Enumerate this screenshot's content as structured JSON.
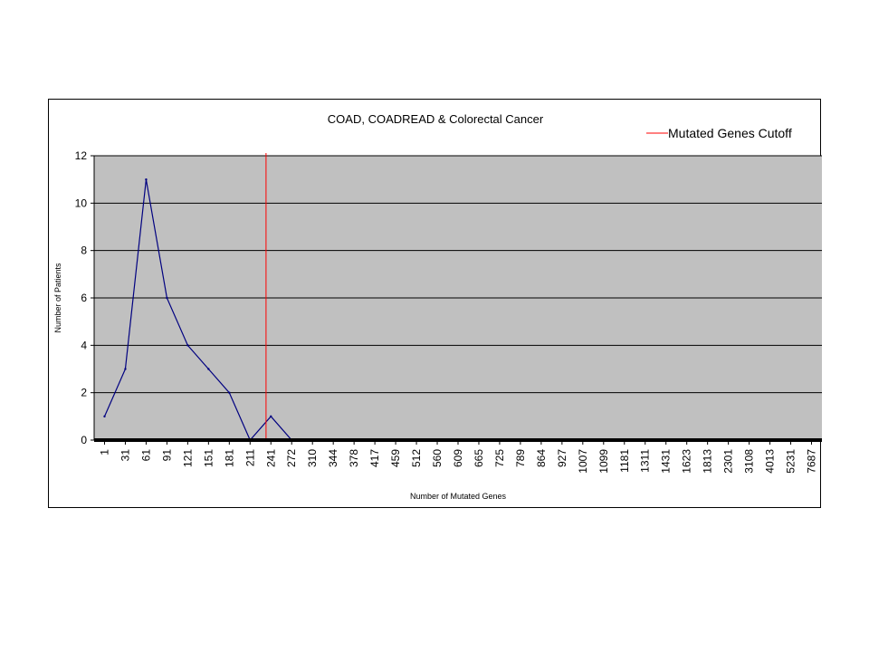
{
  "chart_data": {
    "type": "line",
    "title": "COAD, COADREAD & Colorectal Cancer",
    "xlabel": "Number of Mutated Genes",
    "ylabel": "Number of Patients",
    "ylim": [
      0,
      12
    ],
    "yticks": [
      0,
      2,
      4,
      6,
      8,
      10,
      12
    ],
    "grid": true,
    "legend_position": "top-right",
    "x_tick_labels": [
      "1",
      "31",
      "61",
      "91",
      "121",
      "151",
      "181",
      "211",
      "241",
      "272",
      "310",
      "344",
      "378",
      "417",
      "459",
      "512",
      "560",
      "609",
      "665",
      "725",
      "789",
      "864",
      "927",
      "1007",
      "1099",
      "1181",
      "1311",
      "1431",
      "1623",
      "1813",
      "2301",
      "3108",
      "4013",
      "5231",
      "7687"
    ],
    "series": [
      {
        "name": "",
        "color": "#000080",
        "note": "values sampled at each x tick label",
        "x": [
          "1",
          "31",
          "61",
          "91",
          "121",
          "151",
          "181",
          "211",
          "241",
          "272",
          "310",
          "344",
          "378",
          "417",
          "459",
          "512",
          "560",
          "609",
          "665",
          "725",
          "789",
          "864",
          "927",
          "1007",
          "1099",
          "1181",
          "1311",
          "1431",
          "1623",
          "1813",
          "2301",
          "3108",
          "4013",
          "5231",
          "7687"
        ],
        "values": [
          1,
          3,
          11,
          6,
          4,
          3,
          2,
          0,
          1,
          0,
          0,
          0,
          0,
          0,
          0,
          0,
          0,
          0,
          0,
          0,
          0,
          0,
          0,
          0,
          0,
          0,
          0,
          0,
          0,
          0,
          0,
          0,
          0,
          0,
          0
        ]
      },
      {
        "name": "Mutated Genes Cutoff",
        "color": "#ff0000",
        "x_value": "234",
        "type": "vertical-line"
      }
    ],
    "plot_background": "#c0c0c0",
    "axis_color": "#000000"
  }
}
